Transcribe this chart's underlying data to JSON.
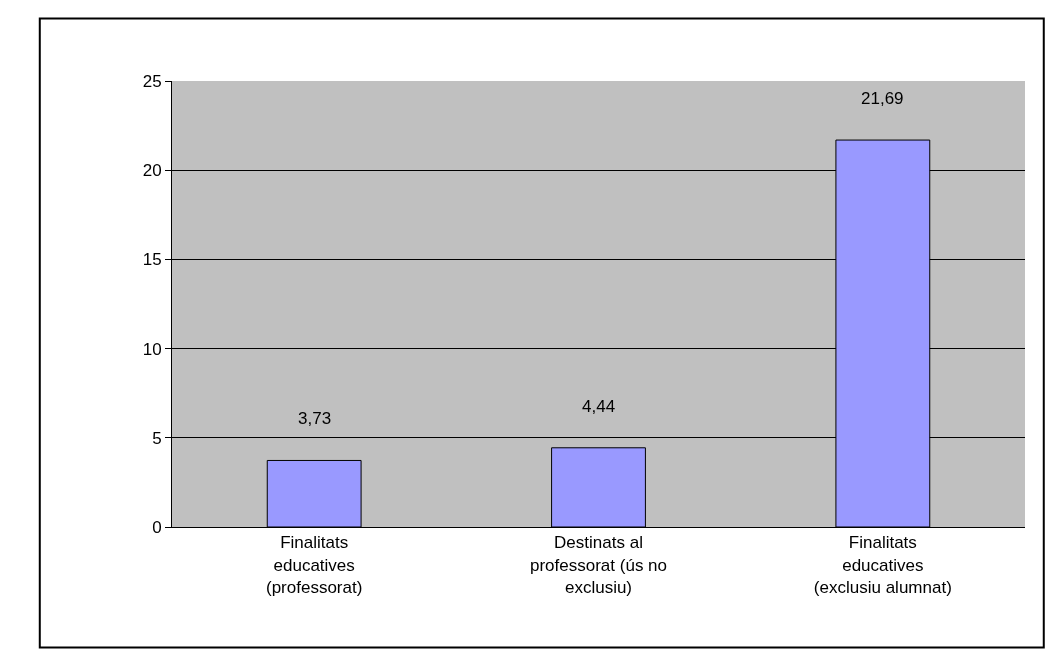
{
  "chart_data": {
    "type": "bar",
    "categories": [
      "Finalitats educatives (professorat)",
      "Destinats al professorat (ús no exclusiu)",
      "Finalitats educatives (exclusiu alumnat)"
    ],
    "values": [
      3.73,
      4.44,
      21.69
    ],
    "value_labels": [
      "3,73",
      "4,44",
      "21,69"
    ],
    "color": "#9999ff",
    "ylim": [
      0,
      25
    ],
    "yticks": [
      0,
      5,
      10,
      15,
      20,
      25
    ],
    "grid": "y",
    "legend": false
  }
}
